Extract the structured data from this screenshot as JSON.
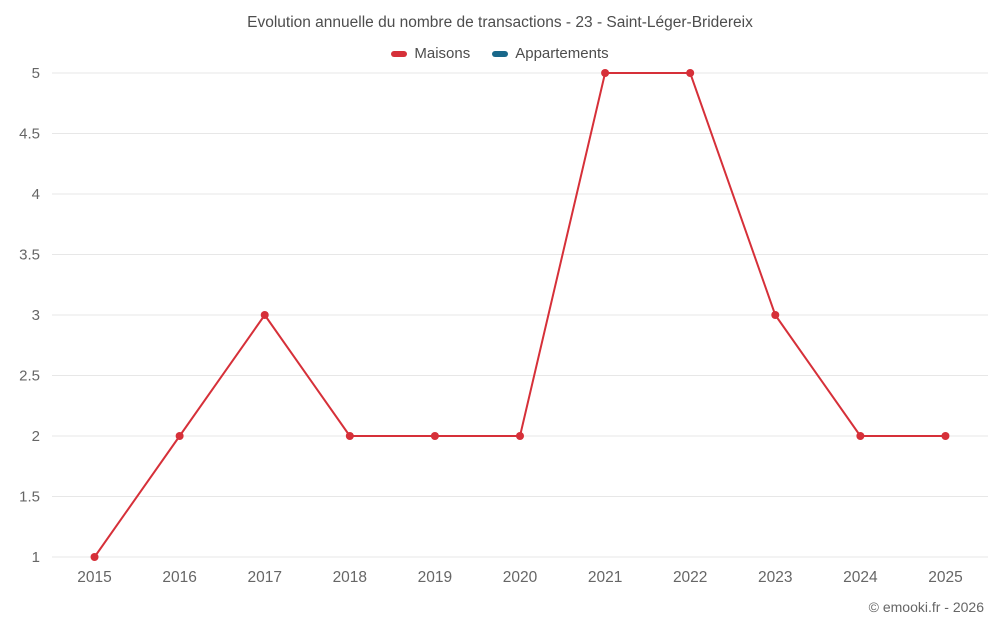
{
  "title": "Evolution annuelle du nombre de transactions - 23 - Saint-Léger-Bridereix",
  "legend": [
    {
      "label": "Maisons",
      "color": "#d63039"
    },
    {
      "label": "Appartements",
      "color": "#19688a"
    }
  ],
  "footer": "© emooki.fr - 2026",
  "colors": {
    "grid": "#e7e7e7",
    "axis_text": "#666666",
    "title_text": "#4d4d4d"
  },
  "chart_data": {
    "type": "line",
    "title": "Evolution annuelle du nombre de transactions - 23 - Saint-Léger-Bridereix",
    "categories": [
      "2015",
      "2016",
      "2017",
      "2018",
      "2019",
      "2020",
      "2021",
      "2022",
      "2023",
      "2024",
      "2025"
    ],
    "series": [
      {
        "name": "Maisons",
        "color": "#d63039",
        "values": [
          1,
          2,
          3,
          2,
          2,
          2,
          5,
          5,
          3,
          2,
          2
        ]
      },
      {
        "name": "Appartements",
        "color": "#19688a",
        "values": []
      }
    ],
    "xlabel": "",
    "ylabel": "",
    "ylim": [
      1,
      5
    ],
    "yticks": [
      1,
      1.5,
      2,
      2.5,
      3,
      3.5,
      4,
      4.5,
      5
    ],
    "grid": "horizontal-only",
    "legend_position": "top",
    "marker": "circle"
  }
}
